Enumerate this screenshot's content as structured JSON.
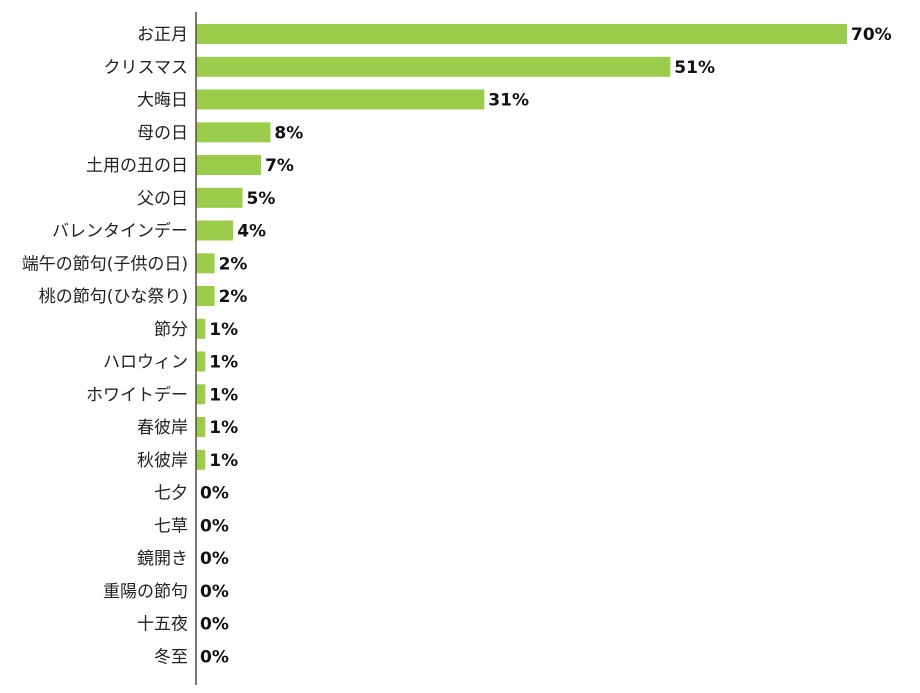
{
  "colors": {
    "bar": "#9bcc4b",
    "axis": "#5a4a3a",
    "label_text": "#222222",
    "value_text": "#111111"
  },
  "chart_data": {
    "type": "bar",
    "orientation": "horizontal",
    "title": "",
    "xlabel": "",
    "ylabel": "",
    "xlim": [
      0,
      70
    ],
    "grid": false,
    "legend": "none",
    "value_suffix": "%",
    "categories": [
      "お正月",
      "クリスマス",
      "大晦日",
      "母の日",
      "土用の丑の日",
      "父の日",
      "バレンタインデー",
      "端午の節句(子供の日)",
      "桃の節句(ひな祭り)",
      "節分",
      "ハロウィン",
      "ホワイトデー",
      "春彼岸",
      "秋彼岸",
      "七夕",
      "七草",
      "鏡開き",
      "重陽の節句",
      "十五夜",
      "冬至"
    ],
    "values": [
      70,
      51,
      31,
      8,
      7,
      5,
      4,
      2,
      2,
      1,
      1,
      1,
      1,
      1,
      0,
      0,
      0,
      0,
      0,
      0
    ],
    "value_labels": [
      "70%",
      "51%",
      "31%",
      "8%",
      "7%",
      "5%",
      "4%",
      "2%",
      "2%",
      "1%",
      "1%",
      "1%",
      "1%",
      "1%",
      "0%",
      "0%",
      "0%",
      "0%",
      "0%",
      "0%"
    ]
  }
}
